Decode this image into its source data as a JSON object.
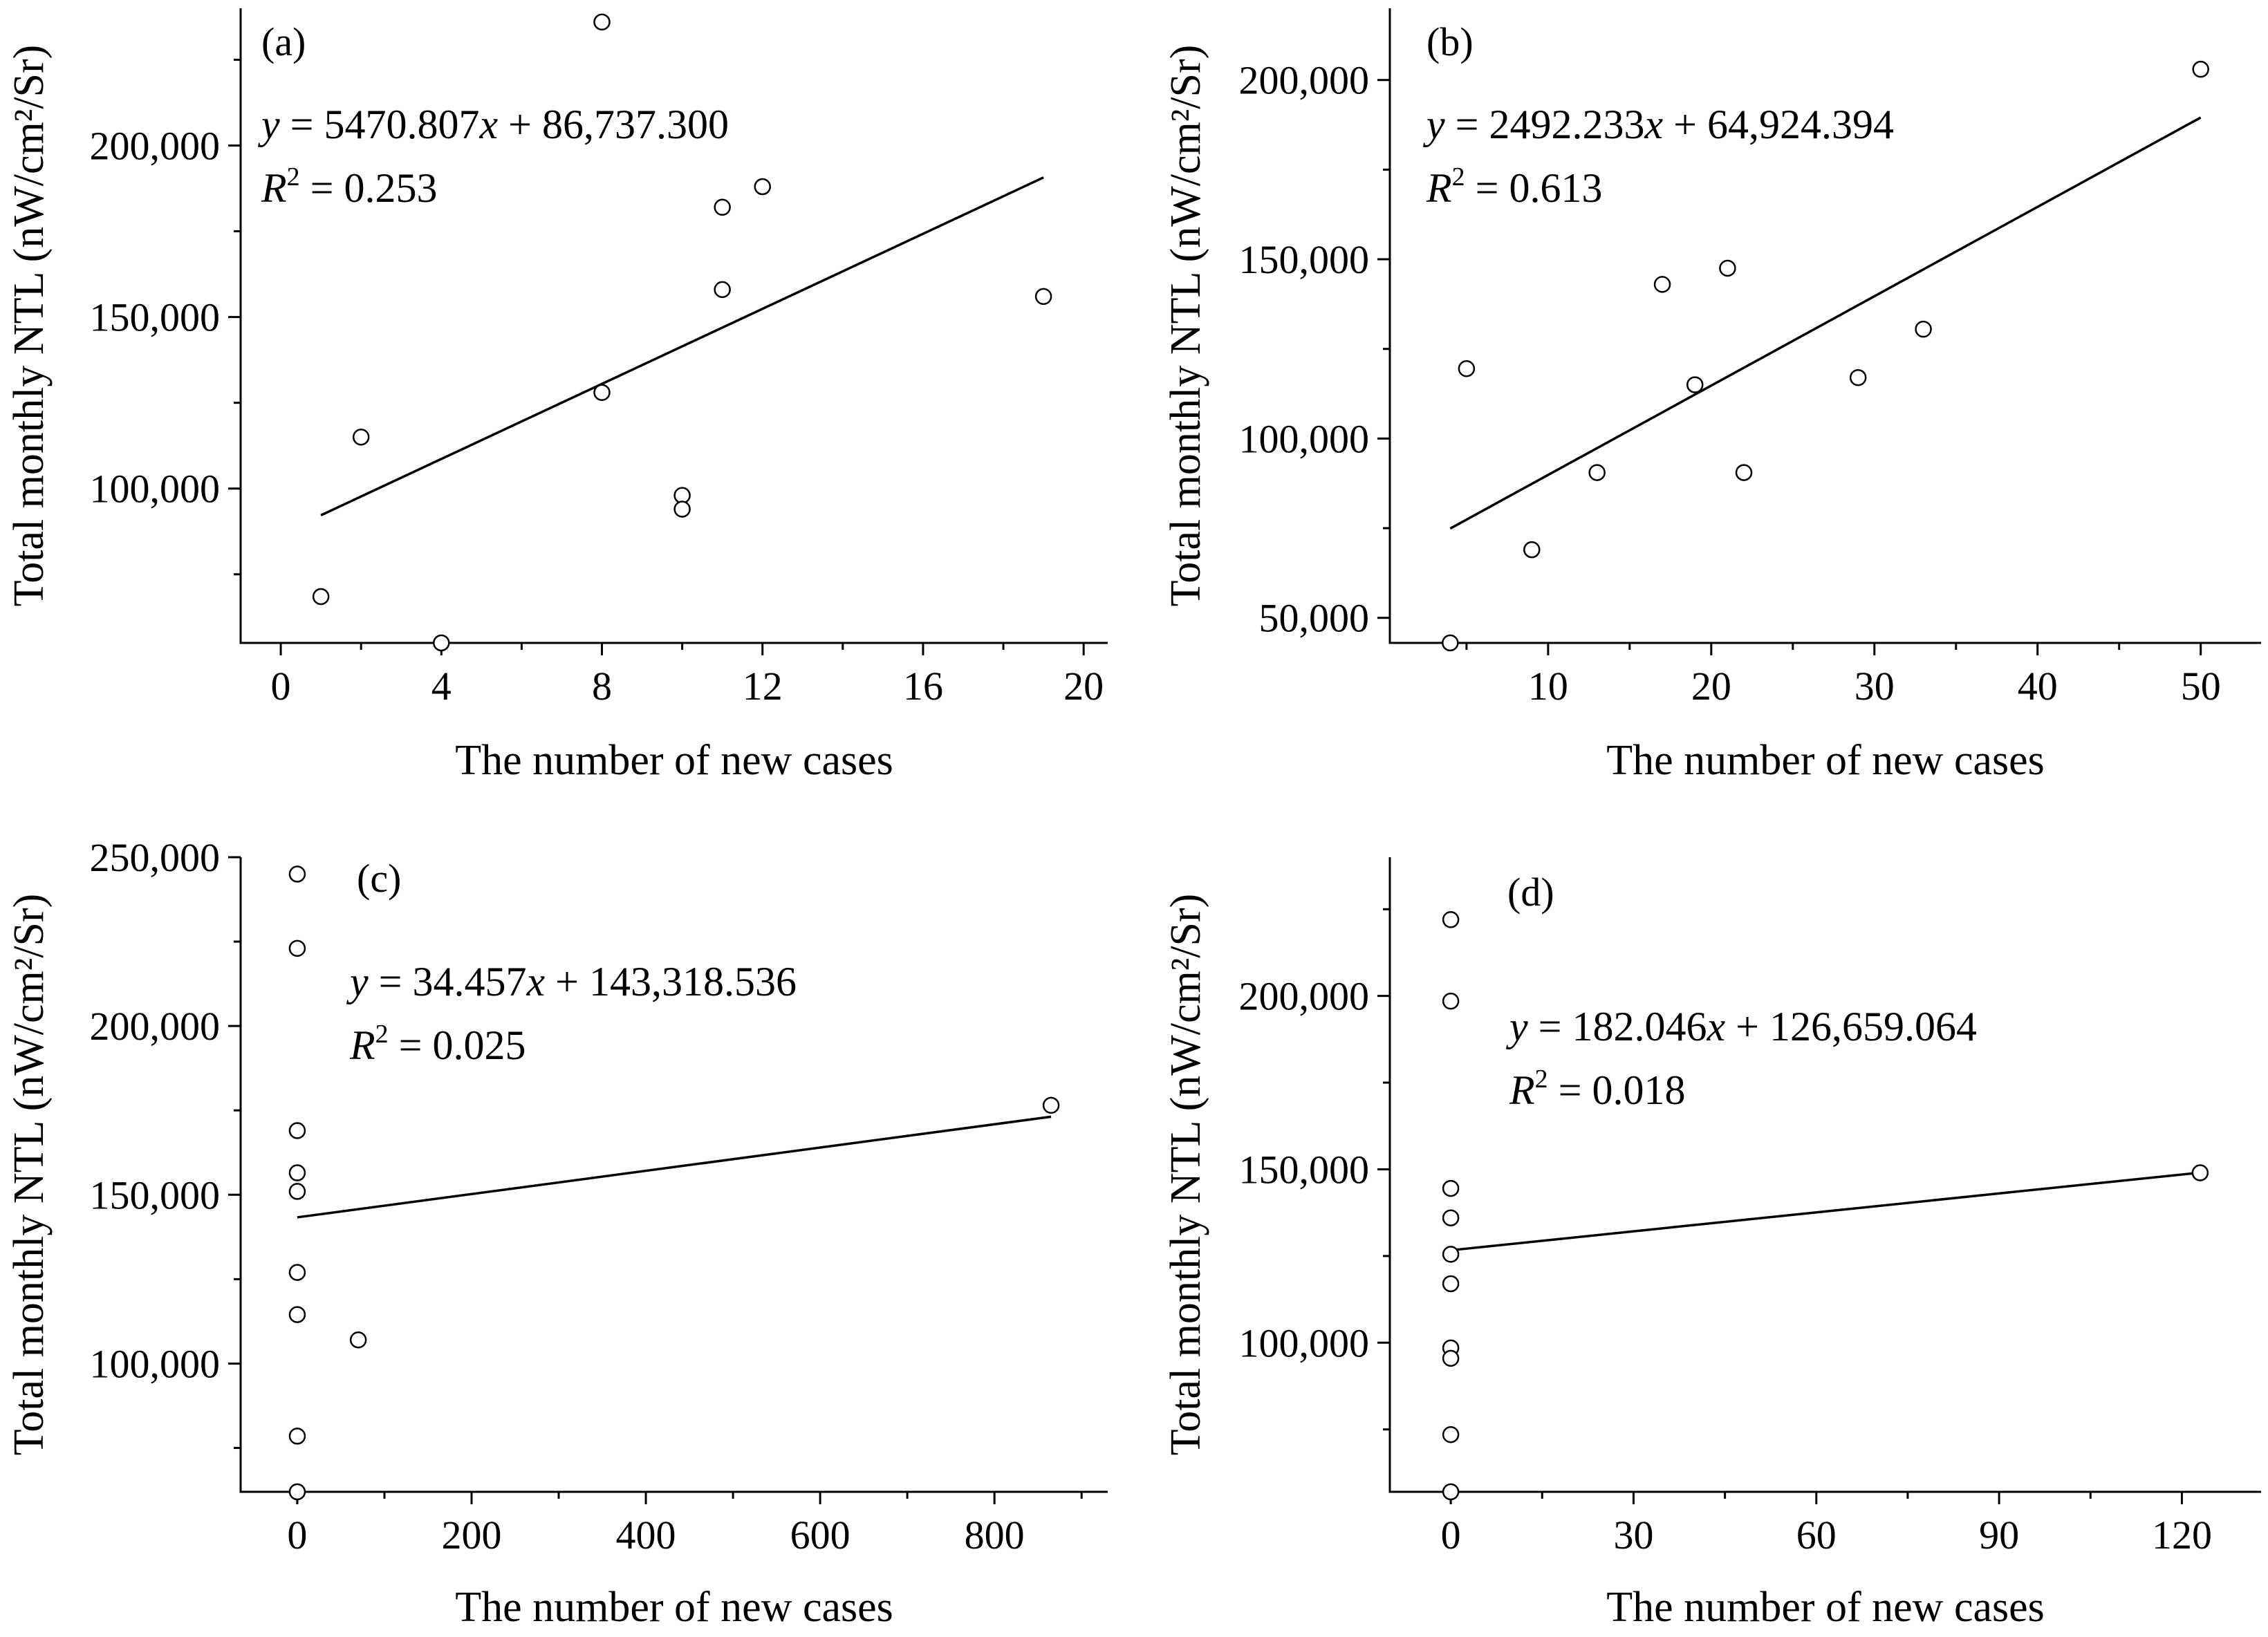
{
  "chart_data": [
    {
      "type": "scatter",
      "panel": "(a)",
      "xlabel": "The number of new cases",
      "ylabel": "Total monthly NTL (nW/cm²/Sr)",
      "xlim": [
        -1,
        20.6
      ],
      "ylim": [
        55000,
        240000
      ],
      "xticks": [
        0,
        4,
        8,
        12,
        16,
        20
      ],
      "xtick_labels": [
        "0",
        "4",
        "8",
        "12",
        "16",
        "20"
      ],
      "yticks": [
        100000,
        150000,
        200000
      ],
      "ytick_labels": [
        "100,000",
        "150,000",
        "200,000"
      ],
      "x": [
        1,
        2,
        4,
        8,
        8,
        10,
        10,
        11,
        11,
        12,
        19
      ],
      "y": [
        68500,
        115000,
        55000,
        236000,
        128000,
        98000,
        94000,
        182000,
        158000,
        188000,
        156000
      ],
      "fit": {
        "slope": 5470.807,
        "intercept": 86737.3,
        "x_range": [
          1,
          19
        ]
      },
      "equation": {
        "y": "y",
        "eq_a": " = 5470.807",
        "x": "x",
        "eq_b": " + 86,737.300",
        "r": "R",
        "r_sup": "2",
        "r_eq": " = 0.253"
      }
    },
    {
      "type": "scatter",
      "panel": "(b)",
      "xlabel": "The number of new cases",
      "ylabel": "Total monthly NTL (nW/cm²/Sr)",
      "xlim": [
        0.3,
        53.7
      ],
      "ylim": [
        43000,
        220000
      ],
      "xticks": [
        10,
        20,
        30,
        40,
        50
      ],
      "xtick_labels": [
        "10",
        "20",
        "30",
        "40",
        "50"
      ],
      "yticks": [
        50000,
        100000,
        150000,
        200000
      ],
      "ytick_labels": [
        "50,000",
        "100,000",
        "150,000",
        "200,000"
      ],
      "x": [
        4,
        5,
        9,
        13,
        17,
        19,
        21,
        22,
        29,
        33,
        50
      ],
      "y": [
        43000,
        119500,
        69000,
        90500,
        143000,
        115000,
        147500,
        90500,
        117000,
        130500,
        203000
      ],
      "fit": {
        "slope": 2492.233,
        "intercept": 64924.394,
        "x_range": [
          4,
          50
        ]
      },
      "equation": {
        "y": "y",
        "eq_a": " = 2492.233",
        "x": "x",
        "eq_b": " + 64,924.394",
        "r": "R",
        "r_sup": "2",
        "r_eq": " = 0.613"
      }
    },
    {
      "type": "scatter",
      "panel": "(c)",
      "xlabel": "The number of new cases",
      "ylabel": "Total monthly NTL (nW/cm²/Sr)",
      "xlim": [
        -65,
        930
      ],
      "ylim": [
        62000,
        250000
      ],
      "xticks": [
        0,
        200,
        400,
        600,
        800
      ],
      "xtick_labels": [
        "0",
        "200",
        "400",
        "600",
        "800"
      ],
      "yticks": [
        100000,
        150000,
        200000,
        250000
      ],
      "ytick_labels": [
        "100,000",
        "150,000",
        "200,000",
        "250,000"
      ],
      "x": [
        0,
        0,
        0,
        0,
        0,
        0,
        0,
        0,
        0,
        70,
        865
      ],
      "y": [
        245000,
        223000,
        169000,
        156500,
        151000,
        127000,
        114500,
        78500,
        62000,
        107000,
        176500
      ],
      "fit": {
        "slope": 34.457,
        "intercept": 143318.536,
        "x_range": [
          0,
          865
        ]
      },
      "equation": {
        "y": "y",
        "eq_a": " = 34.457",
        "x": "x",
        "eq_b": " + 143,318.536",
        "r": "R",
        "r_sup": "2",
        "r_eq": " = 0.025"
      }
    },
    {
      "type": "scatter",
      "panel": "(d)",
      "xlabel": "The number of new cases",
      "ylabel": "Total monthly NTL (nW/cm²/Sr)",
      "xlim": [
        -10,
        133
      ],
      "ylim": [
        57000,
        240000
      ],
      "xticks": [
        0,
        30,
        60,
        90,
        120
      ],
      "xtick_labels": [
        "0",
        "30",
        "60",
        "90",
        "120"
      ],
      "yticks": [
        100000,
        150000,
        200000
      ],
      "ytick_labels": [
        "100,000",
        "150,000",
        "200,000"
      ],
      "x": [
        0,
        0,
        0,
        0,
        0,
        0,
        0,
        0,
        0,
        0,
        123
      ],
      "y": [
        222000,
        198500,
        144500,
        136000,
        125500,
        117000,
        98500,
        95500,
        73500,
        57000,
        149000
      ],
      "fit": {
        "slope": 182.046,
        "intercept": 126659.064,
        "x_range": [
          0,
          123
        ]
      },
      "equation": {
        "y": "y",
        "eq_a": " = 182.046",
        "x": "x",
        "eq_b": " + 126,659.064",
        "r": "R",
        "r_sup": "2",
        "r_eq": " = 0.018"
      }
    }
  ]
}
